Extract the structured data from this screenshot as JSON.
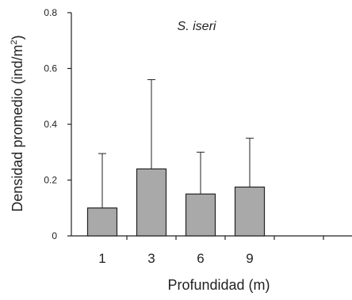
{
  "chart_data": {
    "type": "bar",
    "title": "S. iseri",
    "xlabel": "Profundidad (m)",
    "ylabel_prefix": "Densidad promedio (ind/m",
    "ylabel_sup": "2",
    "ylabel_suffix": ")",
    "categories": [
      "1",
      "3",
      "6",
      "9"
    ],
    "values": [
      0.1,
      0.24,
      0.15,
      0.175
    ],
    "error_upper": [
      0.295,
      0.56,
      0.3,
      0.35
    ],
    "ylim": [
      0,
      0.8
    ],
    "yticks": [
      0,
      0.2,
      0.4,
      0.6,
      0.8
    ],
    "ytick_labels": [
      "0",
      "0.2",
      "0.4",
      "0.6",
      "0.8"
    ],
    "grid": false,
    "colors": {
      "bar": "#a9a9a9",
      "axis": "#222222"
    }
  }
}
